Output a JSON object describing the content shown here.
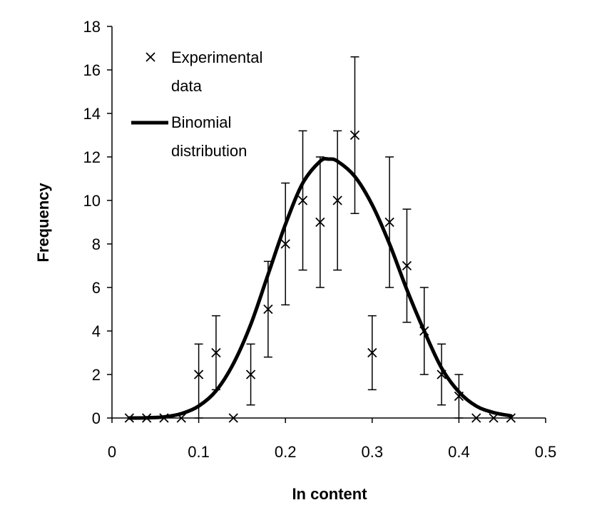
{
  "chart_data": {
    "type": "scatter",
    "title": "",
    "xlabel": "In content",
    "ylabel": "Frequency",
    "xlim": [
      0,
      0.5
    ],
    "ylim": [
      0,
      18
    ],
    "xticks": [
      0,
      0.1,
      0.2,
      0.3,
      0.4,
      0.5
    ],
    "xtick_labels": [
      "0",
      "0.1",
      "0.2",
      "0.3",
      "0.4",
      "0.5"
    ],
    "yticks": [
      0,
      2,
      4,
      6,
      8,
      10,
      12,
      14,
      16,
      18
    ],
    "ytick_labels": [
      "0",
      "2",
      "4",
      "6",
      "8",
      "10",
      "12",
      "14",
      "16",
      "18"
    ],
    "grid": false,
    "legend_position": "top-left",
    "series": [
      {
        "name": "Experimental data",
        "legend_lines": [
          "Experimental",
          "data"
        ],
        "marker": "x",
        "x": [
          0.02,
          0.04,
          0.06,
          0.08,
          0.1,
          0.12,
          0.14,
          0.16,
          0.18,
          0.2,
          0.22,
          0.24,
          0.26,
          0.28,
          0.3,
          0.32,
          0.34,
          0.36,
          0.38,
          0.4,
          0.42,
          0.44,
          0.46
        ],
        "y": [
          0,
          0,
          0,
          0,
          2,
          3,
          0,
          2,
          5,
          8,
          10,
          9,
          10,
          13,
          3,
          9,
          7,
          4,
          2,
          1,
          0,
          0,
          0
        ],
        "err_low": [
          0,
          0,
          0,
          0,
          0,
          1.3,
          0,
          0.6,
          2.8,
          5.2,
          6.8,
          6.0,
          6.8,
          9.4,
          1.3,
          6.0,
          4.4,
          2.0,
          0.6,
          0,
          0,
          0,
          0
        ],
        "err_high": [
          0,
          0,
          0,
          0,
          3.4,
          4.7,
          0,
          3.4,
          7.2,
          10.8,
          13.2,
          12.0,
          13.2,
          16.6,
          4.7,
          12.0,
          9.6,
          6.0,
          3.4,
          2.0,
          0,
          0,
          0
        ]
      },
      {
        "name": "Binomial distribution",
        "legend_lines": [
          "Binomial",
          "distribution"
        ],
        "line": "solid",
        "x": [
          0.02,
          0.04,
          0.06,
          0.08,
          0.1,
          0.12,
          0.14,
          0.16,
          0.18,
          0.2,
          0.22,
          0.24,
          0.25,
          0.26,
          0.28,
          0.3,
          0.32,
          0.34,
          0.36,
          0.38,
          0.4,
          0.42,
          0.44,
          0.46
        ],
        "y": [
          0,
          0.01,
          0.05,
          0.2,
          0.55,
          1.25,
          2.5,
          4.3,
          6.6,
          8.9,
          10.8,
          11.8,
          11.9,
          11.8,
          11.1,
          9.8,
          8.0,
          5.9,
          4.0,
          2.3,
          1.2,
          0.55,
          0.25,
          0.1
        ]
      }
    ]
  }
}
